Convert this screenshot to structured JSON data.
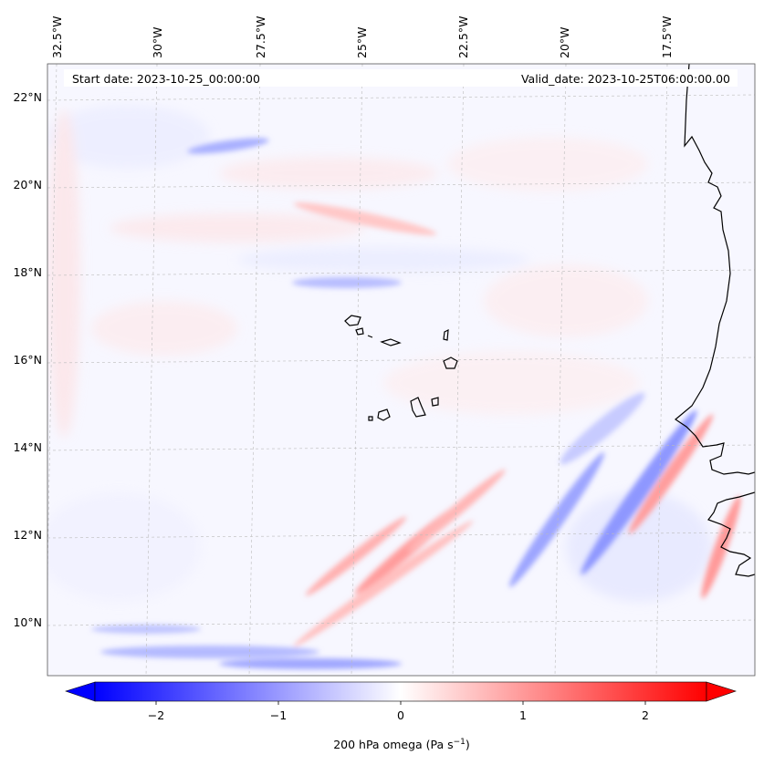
{
  "map": {
    "start_date": "Start date: 2023-10-25_00:00:00",
    "valid_date": "Valid_date: 2023-10-25T06:00:00.00",
    "lon_labels": [
      "32.5°W",
      "30°W",
      "27.5°W",
      "25°W",
      "22.5°W",
      "20°W",
      "17.5°W"
    ],
    "lat_labels": [
      "22°N",
      "20°N",
      "18°N",
      "16°N",
      "14°N",
      "12°N",
      "10°N"
    ],
    "gridlines": true
  },
  "colorbar": {
    "ticks": [
      "−2",
      "−1",
      "0",
      "1",
      "2"
    ],
    "label": "200 hPa omega (Pa s",
    "label_sup": "−1",
    "label_close": ")",
    "min_color": "#0000ff",
    "mid_color": "#ffffff",
    "max_color": "#ff0000"
  }
}
